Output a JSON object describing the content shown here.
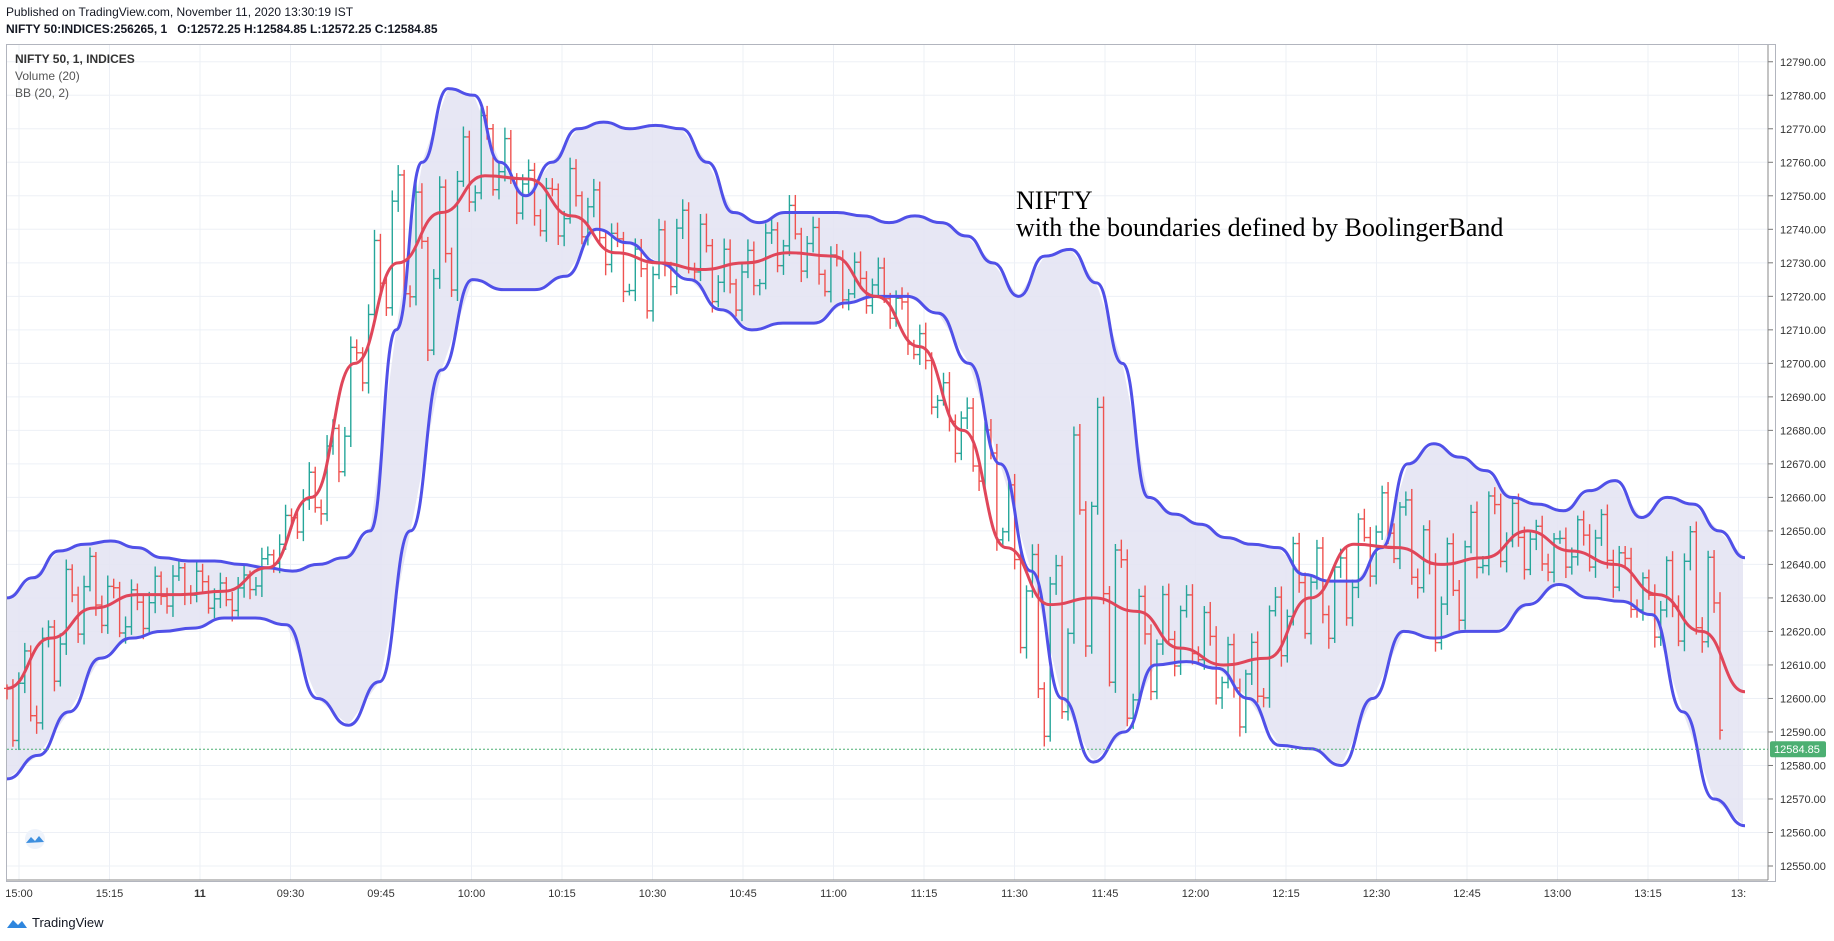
{
  "header": {
    "published": "Published on TradingView.com, November 11, 2020 13:30:19 IST",
    "symbol": "NIFTY 50:INDICES:256265, 1",
    "o_label": "O:",
    "o": "12572.25",
    "h_label": "H:",
    "h": "12584.85",
    "l_label": "L:",
    "l": "12572.25",
    "c_label": "C:",
    "c": "12584.85"
  },
  "legend": {
    "symbol": "NIFTY 50, 1, INDICES",
    "volume": "Volume (20)",
    "bb": "BB (20, 2)"
  },
  "annotation": {
    "line1": "NIFTY",
    "line2": "with the boundaries defined by BoolingerBand"
  },
  "footer": {
    "brand": "TradingView"
  },
  "colors": {
    "up": "#26a69a",
    "down": "#ef5350",
    "basis": "#e0465a",
    "band": "#5050e8",
    "fill": "#e3e3f2",
    "grid": "#edf0f6",
    "price_tag": "#4caf72"
  },
  "chart_data": {
    "type": "line",
    "title": "NIFTY",
    "subtitle": "with the boundaries defined by BoolingerBand",
    "ylim": [
      12550,
      12795
    ],
    "y_ticks": [
      12550,
      12560,
      12570,
      12580,
      12590,
      12600,
      12610,
      12620,
      12630,
      12640,
      12650,
      12660,
      12670,
      12680,
      12690,
      12700,
      12710,
      12720,
      12730,
      12740,
      12750,
      12760,
      12770,
      12780,
      12790
    ],
    "y_tick_labels": [
      "12550.00",
      "12560.00",
      "12570.00",
      "12580.00",
      "12590.00",
      "12600.00",
      "12610.00",
      "12620.00",
      "12630.00",
      "12640.00",
      "12650.00",
      "12660.00",
      "12670.00",
      "12680.00",
      "12690.00",
      "12700.00",
      "12710.00",
      "12720.00",
      "12730.00",
      "12740.00",
      "12750.00",
      "12760.00",
      "12770.00",
      "12780.00",
      "12790.00"
    ],
    "x_ticks": [
      "15:00",
      "15:15",
      "11",
      "09:30",
      "09:45",
      "10:00",
      "10:15",
      "10:30",
      "10:45",
      "11:00",
      "11:15",
      "11:30",
      "11:45",
      "12:00",
      "12:15",
      "12:30",
      "12:45",
      "13:00",
      "13:15",
      "13:"
    ],
    "last_price": 12584.85,
    "last_price_label": "12584.85",
    "bars_count": 290,
    "grid": true,
    "series": [
      {
        "name": "BB (20, 2)",
        "role": "upper",
        "values": [
          12630,
          12636,
          12644,
          12646,
          12647,
          12645,
          12642,
          12641,
          12641,
          12640,
          12639,
          12638,
          12640,
          12642,
          12650,
          12710,
          12760,
          12782,
          12780,
          12760,
          12750,
          12760,
          12770,
          12772,
          12770,
          12771,
          12770,
          12760,
          12745,
          12742,
          12745,
          12745,
          12745,
          12744,
          12742,
          12744,
          12742,
          12738,
          12730,
          12720,
          12732,
          12734,
          12724,
          12700,
          12660,
          12655,
          12652,
          12648,
          12646,
          12645,
          12637,
          12635,
          12635,
          12645,
          12670,
          12676,
          12672,
          12668,
          12660,
          12658,
          12656,
          12662,
          12665,
          12654,
          12660,
          12658,
          12650,
          12642
        ]
      },
      {
        "name": "BB (20, 2)",
        "role": "lower",
        "values": [
          12576,
          12583,
          12596,
          12612,
          12618,
          12620,
          12621,
          12624,
          12624,
          12622,
          12600,
          12592,
          12605,
          12650,
          12698,
          12725,
          12722,
          12722,
          12726,
          12740,
          12736,
          12730,
          12725,
          12716,
          12710,
          12712,
          12712,
          12718,
          12720,
          12720,
          12715,
          12700,
          12670,
          12638,
          12600,
          12581,
          12590,
          12610,
          12611,
          12609,
          12600,
          12586,
          12585,
          12580,
          12600,
          12620,
          12618,
          12620,
          12620,
          12628,
          12634,
          12630,
          12629,
          12625,
          12596,
          12570,
          12562
        ]
      },
      {
        "name": "BB (20, 2)",
        "role": "basis",
        "values": [
          12603,
          12618,
          12627,
          12631,
          12631,
          12632,
          12639,
          12660,
          12700,
          12730,
          12745,
          12756,
          12755,
          12744,
          12733,
          12730,
          12728,
          12730,
          12733,
          12732,
          12720,
          12705,
          12680,
          12645,
          12628,
          12630,
          12626,
          12615,
          12610,
          12612,
          12630,
          12646,
          12645,
          12640,
          12642,
          12650,
          12644,
          12640,
          12631,
          12620,
          12602
        ]
      }
    ]
  }
}
